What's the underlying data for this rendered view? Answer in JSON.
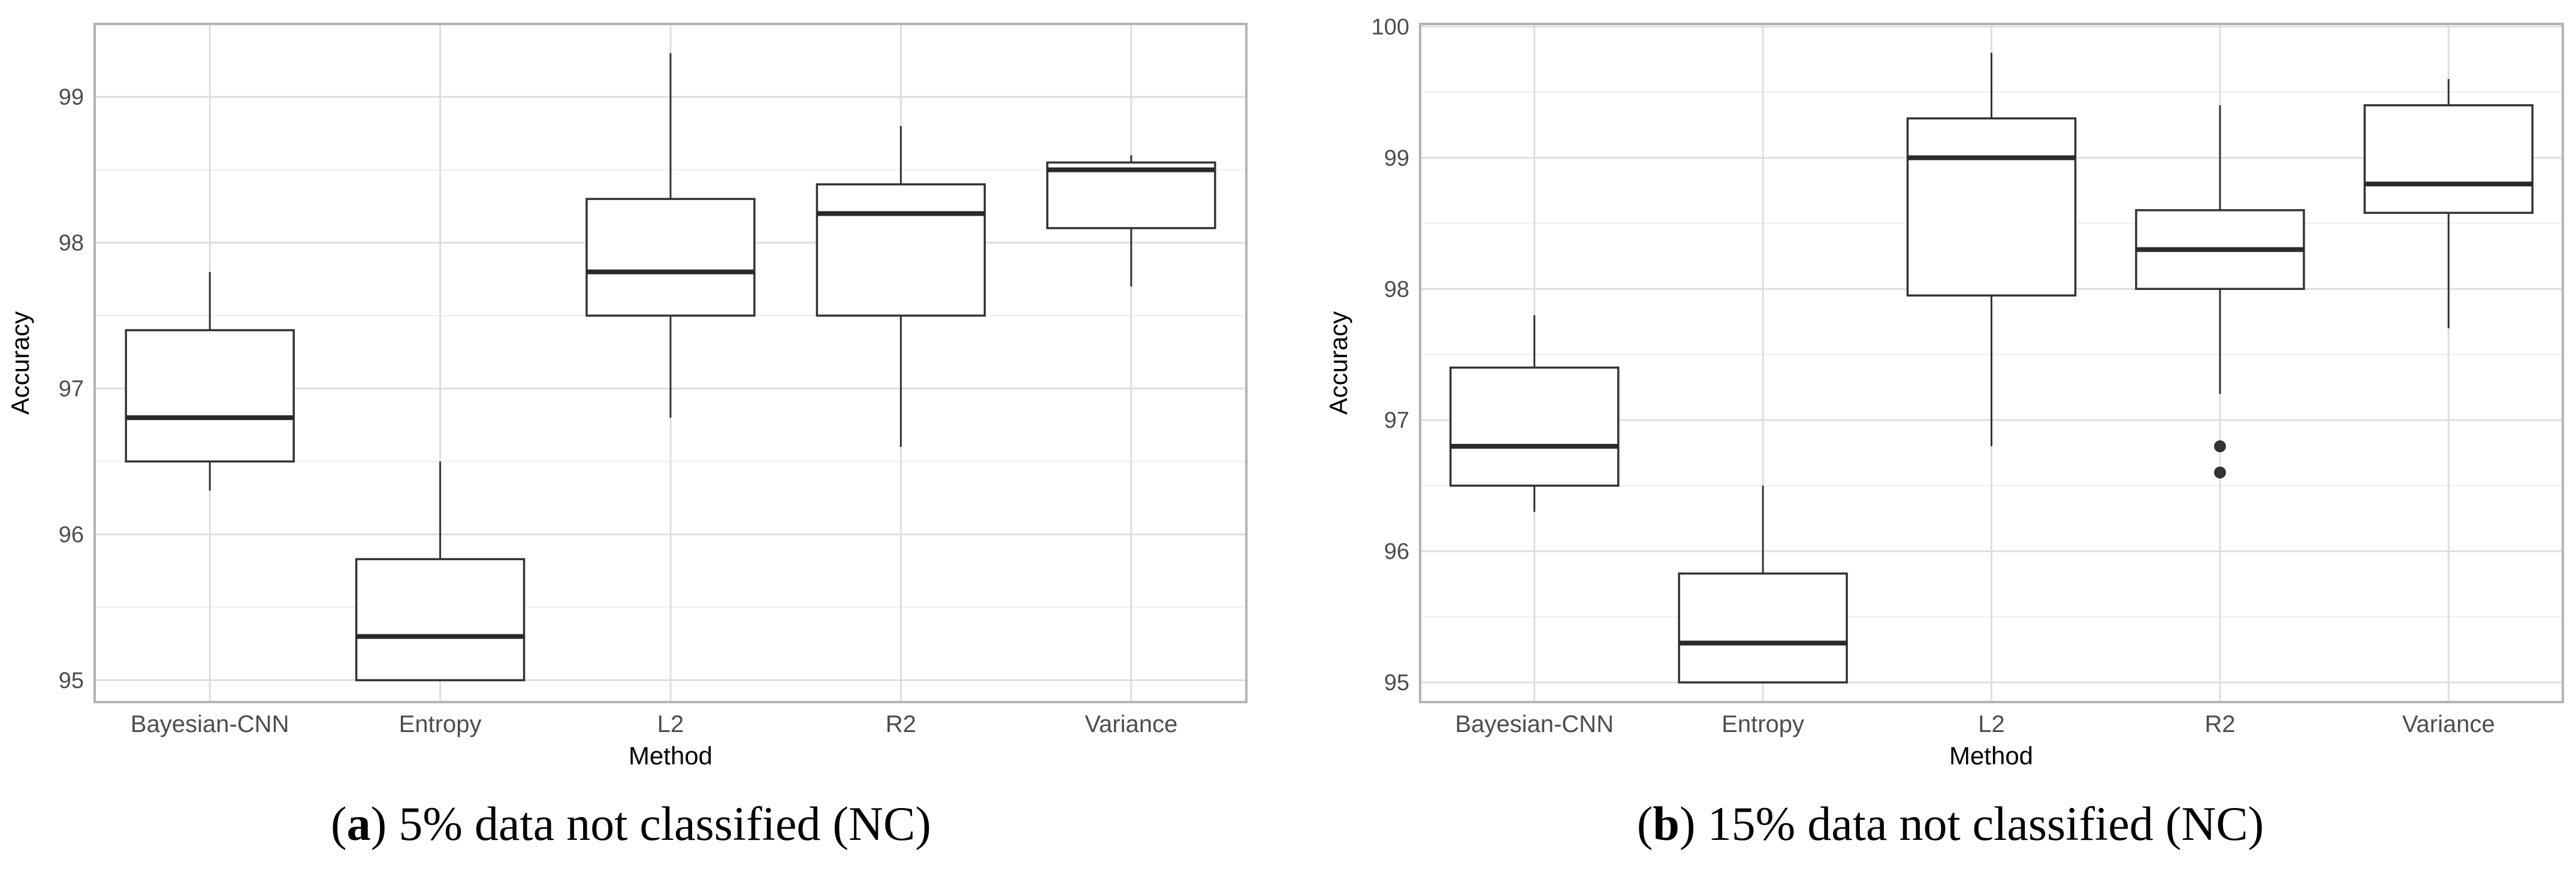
{
  "chart_data": [
    {
      "type": "boxplot",
      "panel_label": "a",
      "caption": "5% data not classified (NC)",
      "xlabel": "Method",
      "ylabel": "Accuracy",
      "categories": [
        "Bayesian-CNN",
        "Entropy",
        "L2",
        "R2",
        "Variance"
      ],
      "yticks": [
        95,
        96,
        97,
        98,
        99
      ],
      "ylim": [
        94.85,
        99.5
      ],
      "grid": true,
      "boxes": [
        {
          "category": "Bayesian-CNN",
          "whisker_low": 96.3,
          "q1": 96.5,
          "median": 96.8,
          "q3": 97.4,
          "whisker_high": 97.8,
          "outliers": []
        },
        {
          "category": "Entropy",
          "whisker_low": 95.0,
          "q1": 95.0,
          "median": 95.3,
          "q3": 95.83,
          "whisker_high": 96.5,
          "outliers": []
        },
        {
          "category": "L2",
          "whisker_low": 96.8,
          "q1": 97.5,
          "median": 97.8,
          "q3": 98.3,
          "whisker_high": 99.3,
          "outliers": []
        },
        {
          "category": "R2",
          "whisker_low": 96.6,
          "q1": 97.5,
          "median": 98.2,
          "q3": 98.4,
          "whisker_high": 98.8,
          "outliers": []
        },
        {
          "category": "Variance",
          "whisker_low": 97.7,
          "q1": 98.1,
          "median": 98.5,
          "q3": 98.55,
          "whisker_high": 98.6,
          "outliers": []
        }
      ]
    },
    {
      "type": "boxplot",
      "panel_label": "b",
      "caption": "15% data not classified (NC)",
      "xlabel": "Method",
      "ylabel": "Accuracy",
      "categories": [
        "Bayesian-CNN",
        "Entropy",
        "L2",
        "R2",
        "Variance"
      ],
      "yticks": [
        95,
        96,
        97,
        98,
        99,
        100
      ],
      "ylim": [
        94.85,
        100.02
      ],
      "grid": true,
      "boxes": [
        {
          "category": "Bayesian-CNN",
          "whisker_low": 96.3,
          "q1": 96.5,
          "median": 96.8,
          "q3": 97.4,
          "whisker_high": 97.8,
          "outliers": []
        },
        {
          "category": "Entropy",
          "whisker_low": 95.0,
          "q1": 95.0,
          "median": 95.3,
          "q3": 95.83,
          "whisker_high": 96.5,
          "outliers": []
        },
        {
          "category": "L2",
          "whisker_low": 96.8,
          "q1": 97.95,
          "median": 99.0,
          "q3": 99.3,
          "whisker_high": 99.8,
          "outliers": []
        },
        {
          "category": "R2",
          "whisker_low": 97.2,
          "q1": 98.0,
          "median": 98.3,
          "q3": 98.6,
          "whisker_high": 99.4,
          "outliers": [
            96.8,
            96.6
          ]
        },
        {
          "category": "Variance",
          "whisker_low": 97.7,
          "q1": 98.58,
          "median": 98.8,
          "q3": 99.4,
          "whisker_high": 99.6,
          "outliers": []
        }
      ]
    }
  ],
  "colors": {
    "panel_border": "#b3b3b3",
    "grid_major": "#dedede",
    "grid_minor": "#eeeeee",
    "box_stroke": "#333333",
    "median": "#2a2a2a",
    "tick_text": "#4d4d4d",
    "axis_title": "#000000",
    "caption_text": "#000000"
  }
}
